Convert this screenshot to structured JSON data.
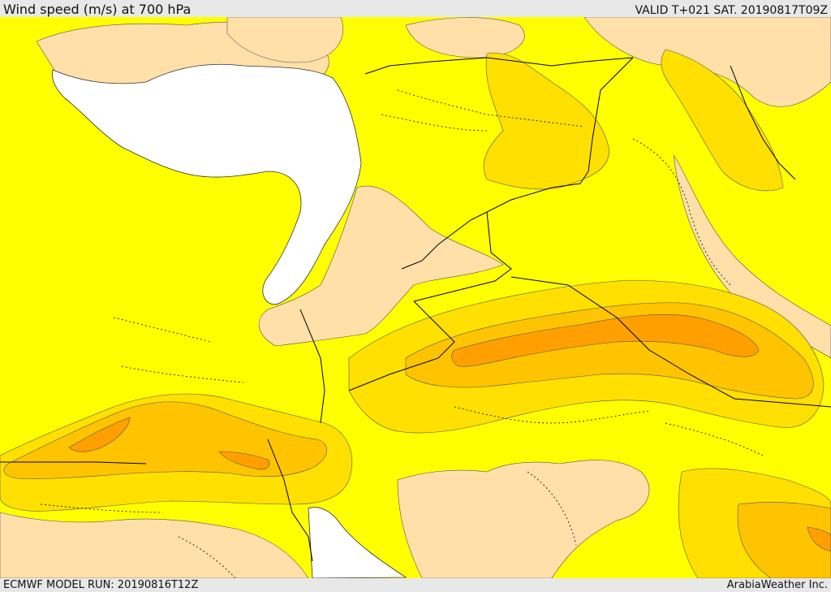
{
  "header": {
    "title": "Wind speed (m/s) at 700 hPa",
    "valid_time": "VALID T+021 SAT. 20190817T09Z"
  },
  "footer": {
    "model_run": "ECMWF MODEL RUN: 20190816T12Z",
    "credit": "ArabiaWeather Inc."
  },
  "map": {
    "variable": "wind speed",
    "level": "700 hPa",
    "colors": {
      "sea": "#ffffff",
      "band_low": "#ffe0a8",
      "band_base": "#ffff00",
      "band_mid": "#ffe000",
      "band_high": "#ffc400",
      "band_max": "#ffa000",
      "border": "#000000"
    }
  }
}
